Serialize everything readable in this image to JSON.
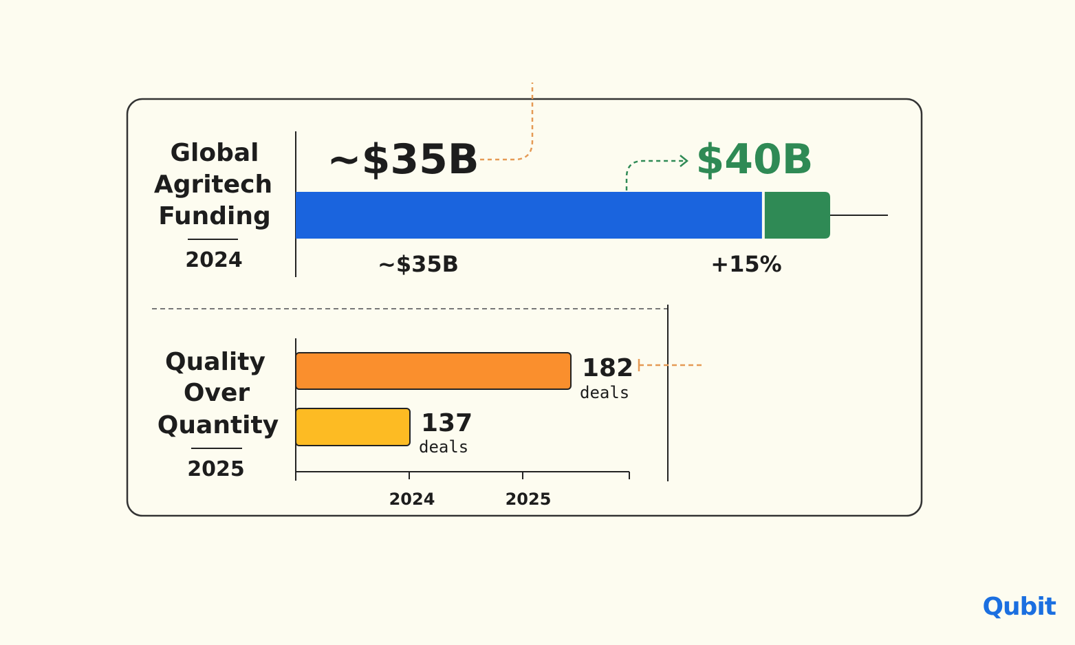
{
  "colors": {
    "background": "#fdfcf0",
    "card_border": "#333333",
    "blue": "#1a64de",
    "green": "#2f8a55",
    "orange": "#fa8f2d",
    "yellow": "#fdbb23",
    "dashed_orange": "#e59a55",
    "dashed_green": "#2f8a55",
    "text": "#1d1d1d"
  },
  "logo": {
    "text": "Qubit"
  },
  "chart_data": [
    {
      "type": "bar",
      "orientation": "horizontal-stacked",
      "title_lines": [
        "Global",
        "Agritech",
        "Funding"
      ],
      "year": "2024",
      "segments": [
        {
          "label": "~$35B",
          "value": 35,
          "color": "#1a64de"
        },
        {
          "label": "+15%",
          "value": 5,
          "color": "#2f8a55"
        }
      ],
      "callouts": {
        "start": "~$35B",
        "end": "$40B"
      },
      "total": 40,
      "xlim": [
        0,
        50
      ]
    },
    {
      "type": "bar",
      "orientation": "horizontal",
      "title_lines": [
        "Quality",
        "Over",
        "Quantity"
      ],
      "year": "2025",
      "bars": [
        {
          "value": 182,
          "unit": "deals",
          "color": "#fa8f2d"
        },
        {
          "value": 137,
          "unit": "deals",
          "color": "#fdbb23"
        }
      ],
      "xlim": [
        0,
        272
      ],
      "x_ticks": [
        "2024",
        "2025"
      ]
    }
  ]
}
